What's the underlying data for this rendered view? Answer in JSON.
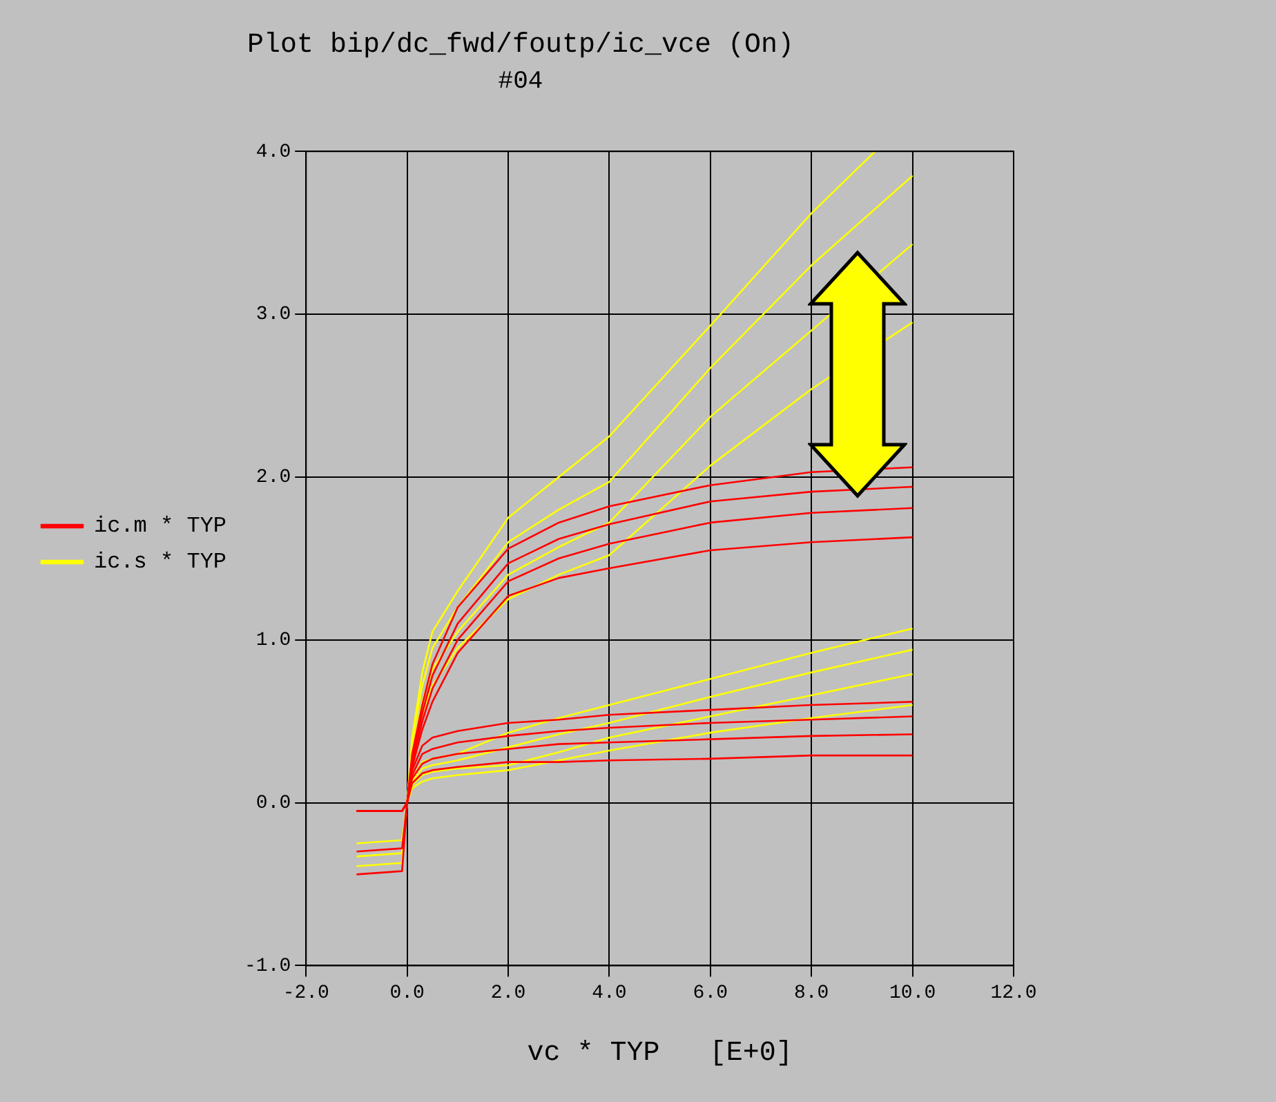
{
  "chart_data": {
    "type": "line",
    "title": "Plot bip/dc_fwd/foutp/ic_vce (On)",
    "subtitle": "#04",
    "xlabel": "vc * TYP   [E+0]",
    "x": [
      -1,
      -0.1,
      0,
      0.1,
      0.3,
      0.5,
      1,
      2,
      3,
      4,
      6,
      8,
      10
    ],
    "xlim": [
      -2,
      12
    ],
    "xticks": [
      {
        "value": -2,
        "label": "-2.0"
      },
      {
        "value": 0,
        "label": "0.0"
      },
      {
        "value": 2,
        "label": "2.0"
      },
      {
        "value": 4,
        "label": "4.0"
      },
      {
        "value": 6,
        "label": "6.0"
      },
      {
        "value": 8,
        "label": "8.0"
      },
      {
        "value": 10,
        "label": "10.0"
      },
      {
        "value": 12,
        "label": "12.0"
      }
    ],
    "ylim": [
      -1,
      4
    ],
    "yticks": [
      {
        "value": -1,
        "label": "-1.0"
      },
      {
        "value": 0,
        "label": "0.0"
      },
      {
        "value": 1,
        "label": "1.0"
      },
      {
        "value": 2,
        "label": "2.0"
      },
      {
        "value": 3,
        "label": "3.0"
      },
      {
        "value": 4,
        "label": "4.0"
      }
    ],
    "grid": true,
    "legend": "left",
    "marker": "none",
    "line_style": "solid",
    "series": [
      {
        "name": "ic.m * TYP",
        "color": "#ff0000",
        "values": [
          -0.05,
          -0.05,
          0,
          0.3,
          0.6,
          0.85,
          1.2,
          1.56,
          1.72,
          1.82,
          1.95,
          2.03,
          2.06
        ]
      },
      {
        "color": "#ff0000",
        "values": [
          -0.05,
          -0.05,
          0,
          0.28,
          0.55,
          0.78,
          1.1,
          1.47,
          1.62,
          1.71,
          1.85,
          1.91,
          1.94
        ]
      },
      {
        "color": "#ff0000",
        "values": [
          -0.3,
          -0.28,
          0,
          0.25,
          0.5,
          0.7,
          1.0,
          1.36,
          1.5,
          1.59,
          1.72,
          1.78,
          1.81
        ]
      },
      {
        "color": "#ff0000",
        "values": [
          -0.44,
          -0.42,
          0,
          0.22,
          0.45,
          0.62,
          0.92,
          1.27,
          1.38,
          1.44,
          1.55,
          1.6,
          1.63
        ]
      },
      {
        "color": "#ff0000",
        "values": [
          -0.05,
          -0.05,
          0,
          0.2,
          0.35,
          0.4,
          0.44,
          0.49,
          0.51,
          0.54,
          0.57,
          0.6,
          0.62
        ]
      },
      {
        "color": "#ff0000",
        "values": [
          -0.05,
          -0.05,
          0,
          0.17,
          0.3,
          0.33,
          0.37,
          0.41,
          0.44,
          0.46,
          0.49,
          0.51,
          0.53
        ]
      },
      {
        "color": "#ff0000",
        "values": [
          -0.05,
          -0.05,
          0,
          0.15,
          0.24,
          0.27,
          0.3,
          0.33,
          0.36,
          0.37,
          0.39,
          0.41,
          0.42
        ]
      },
      {
        "color": "#ff0000",
        "values": [
          -0.05,
          -0.05,
          0,
          0.12,
          0.18,
          0.2,
          0.22,
          0.25,
          0.25,
          0.26,
          0.27,
          0.29,
          0.29
        ]
      },
      {
        "name": "ic.s * TYP",
        "color": "#ffff00",
        "x": [
          -0.1,
          0,
          0.1,
          0.3,
          0.5,
          1,
          2,
          3,
          4,
          6,
          8,
          9.26
        ],
        "values": [
          -0.05,
          0,
          0.4,
          0.8,
          1.05,
          1.3,
          1.75,
          2.0,
          2.25,
          2.93,
          3.62,
          4.0
        ]
      },
      {
        "color": "#ffff00",
        "values": [
          null,
          -0.05,
          0,
          0.38,
          0.72,
          0.95,
          1.2,
          1.6,
          1.8,
          1.97,
          2.67,
          3.3,
          3.85
        ]
      },
      {
        "color": "#ffff00",
        "values": [
          -0.25,
          -0.23,
          0,
          0.33,
          0.62,
          0.82,
          1.05,
          1.4,
          1.57,
          1.72,
          2.37,
          2.9,
          3.43
        ]
      },
      {
        "color": "#ffff00",
        "values": [
          -0.33,
          -0.31,
          0,
          0.3,
          0.55,
          0.72,
          0.95,
          1.25,
          1.4,
          1.52,
          2.07,
          2.54,
          2.95
        ]
      },
      {
        "color": "#ffff00",
        "values": [
          -0.39,
          -0.37,
          0,
          0.15,
          0.25,
          0.27,
          0.3,
          0.43,
          0.52,
          0.6,
          0.76,
          0.92,
          1.07
        ]
      },
      {
        "color": "#ffff00",
        "values": [
          null,
          -0.05,
          0,
          0.13,
          0.21,
          0.23,
          0.26,
          0.34,
          0.42,
          0.49,
          0.65,
          0.8,
          0.94
        ]
      },
      {
        "color": "#ffff00",
        "values": [
          null,
          -0.05,
          0,
          0.11,
          0.17,
          0.19,
          0.21,
          0.23,
          0.31,
          0.4,
          0.53,
          0.66,
          0.79
        ]
      },
      {
        "color": "#ffff00",
        "values": [
          null,
          -0.05,
          0,
          0.09,
          0.13,
          0.15,
          0.17,
          0.2,
          0.26,
          0.32,
          0.43,
          0.52,
          0.6
        ]
      }
    ]
  }
}
